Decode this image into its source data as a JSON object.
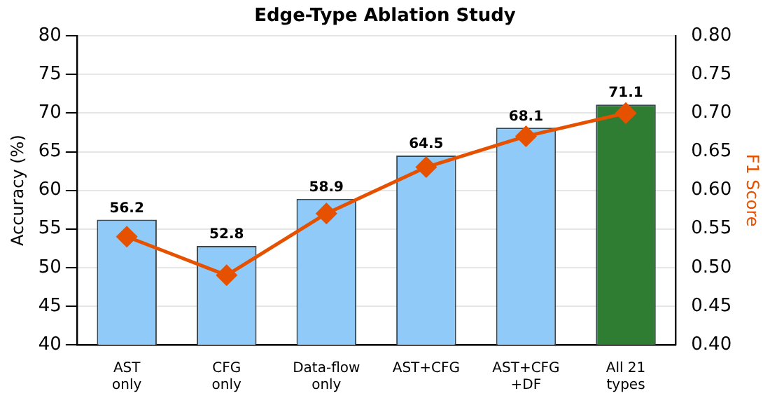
{
  "chart_data": {
    "type": "bar",
    "title": "Edge-Type Ablation Study",
    "ylabel": "Accuracy (%)",
    "y2label": "F1 Score",
    "categories": [
      "AST\nonly",
      "CFG\nonly",
      "Data-flow\nonly",
      "AST+CFG",
      "AST+CFG\n+DF",
      "All 21\ntypes"
    ],
    "series": [
      {
        "values": [
          56.2,
          52.8,
          58.9,
          64.5,
          68.1,
          71.1
        ],
        "colors": [
          "#90caf9",
          "#90caf9",
          "#90caf9",
          "#90caf9",
          "#90caf9",
          "#2e7d32"
        ],
        "value_labels": [
          "56.2",
          "52.8",
          "58.9",
          "64.5",
          "68.1",
          "71.1"
        ]
      },
      {
        "type": "line",
        "axis": "y2",
        "color": "#e65100",
        "values": [
          0.54,
          0.49,
          0.57,
          0.63,
          0.67,
          0.7
        ],
        "marker": "diamond"
      }
    ],
    "ylim": [
      40,
      80
    ],
    "yticks": [
      40,
      45,
      50,
      55,
      60,
      65,
      70,
      75,
      80
    ],
    "y2lim": [
      0.4,
      0.8
    ],
    "y2ticks": [
      {
        "value": 0.4,
        "label": "0.40"
      },
      {
        "value": 0.45,
        "label": "0.45"
      },
      {
        "value": 0.5,
        "label": "0.50"
      },
      {
        "value": 0.55,
        "label": "0.55"
      },
      {
        "value": 0.6,
        "label": "0.60"
      },
      {
        "value": 0.65,
        "label": "0.65"
      },
      {
        "value": 0.7,
        "label": "0.70"
      },
      {
        "value": 0.75,
        "label": "0.75"
      },
      {
        "value": 0.8,
        "label": "0.80"
      }
    ],
    "grid": "y",
    "legend": false
  }
}
